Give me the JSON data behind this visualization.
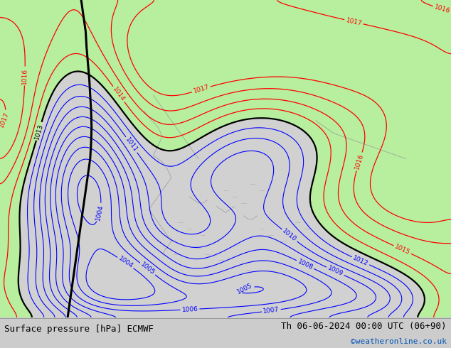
{
  "title_left": "Surface pressure [hPa] ECMWF",
  "title_right": "Th 06-06-2024 00:00 UTC (06+90)",
  "copyright": "©weatheronline.co.uk",
  "green_fill_color": "#b8f0a0",
  "gray_bg_color": "#d2d2d2",
  "bottom_bar_color": "#cccccc",
  "black_contour_level": 1013.0,
  "red_contour_levels": [
    1014,
    1015,
    1016,
    1017
  ],
  "blue_contour_levels": [
    1004,
    1005,
    1006,
    1007,
    1008,
    1009,
    1010,
    1011,
    1012
  ],
  "label_fontsize": 6.5,
  "title_fontsize": 9,
  "copyright_fontsize": 8,
  "figsize": [
    6.34,
    4.9
  ],
  "dpi": 100
}
